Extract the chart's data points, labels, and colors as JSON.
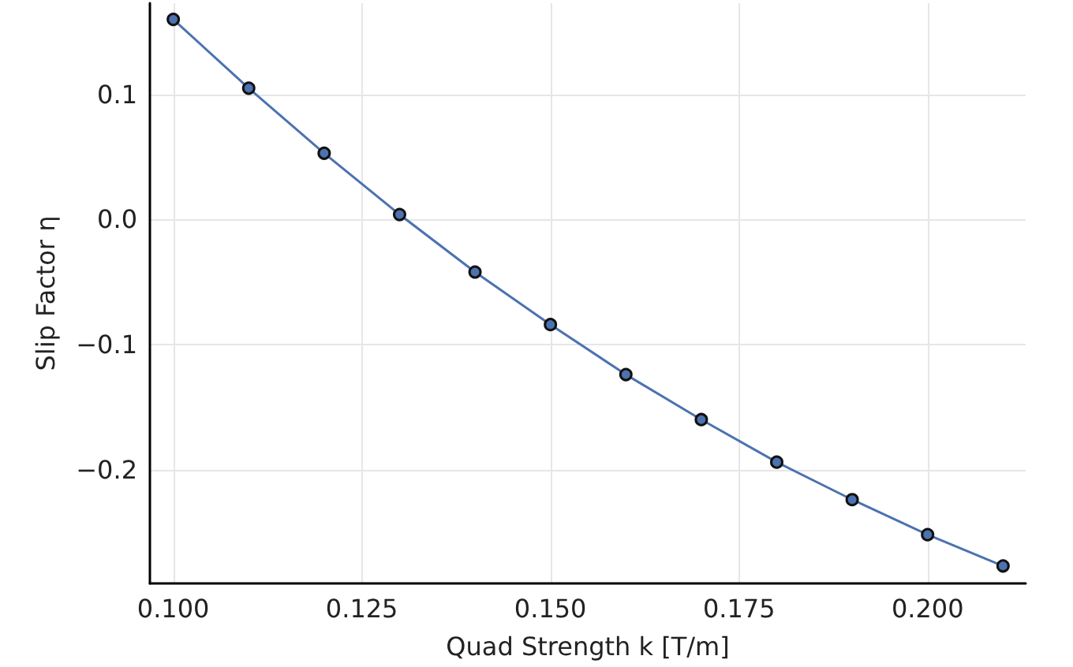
{
  "chart_data": {
    "type": "line",
    "xlabel": "Quad Strength k [T/m]",
    "ylabel": "Slip Factor η",
    "x": [
      0.1,
      0.11,
      0.12,
      0.13,
      0.14,
      0.15,
      0.16,
      0.17,
      0.18,
      0.19,
      0.2,
      0.21
    ],
    "series": [
      {
        "color": "#4c72b0",
        "values": [
          0.16,
          0.105,
          0.053,
          0.004,
          -0.042,
          -0.084,
          -0.124,
          -0.16,
          -0.194,
          -0.224,
          -0.252,
          -0.277
        ]
      }
    ],
    "xlim": [
      0.0969,
      0.213
    ],
    "ylim": [
      -0.291,
      0.173
    ],
    "xticks": [
      {
        "value": 0.1,
        "label": "0.100"
      },
      {
        "value": 0.125,
        "label": "0.125"
      },
      {
        "value": 0.15,
        "label": "0.150"
      },
      {
        "value": 0.175,
        "label": "0.175"
      },
      {
        "value": 0.2,
        "label": "0.200"
      }
    ],
    "yticks": [
      {
        "value": -0.2,
        "label": "−0.2"
      },
      {
        "value": -0.1,
        "label": "−0.1"
      },
      {
        "value": 0,
        "label": "0.0"
      },
      {
        "value": 0.1,
        "label": "0.1"
      }
    ],
    "grid": true,
    "marker": "circle",
    "line_style": "solid"
  }
}
